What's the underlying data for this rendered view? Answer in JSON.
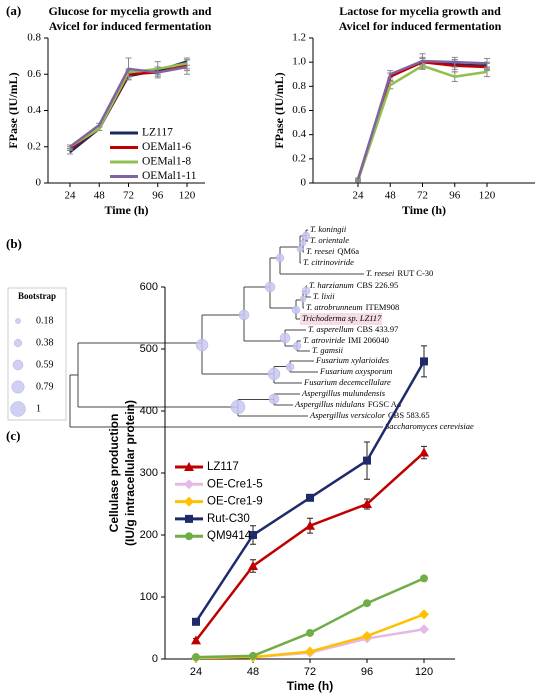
{
  "panels": [
    "(a)",
    "(b)",
    "(c)"
  ],
  "chart_data": [
    {
      "type": "line",
      "title": [
        "Glucose  for mycelia growth and",
        "Avicel for induced fermentation"
      ],
      "xlabel": "Time (h)",
      "ylabel": "FPase (IU/mL)",
      "categories": [
        "24",
        "48",
        "72",
        "96",
        "120"
      ],
      "ylim": [
        0,
        0.8
      ],
      "yticks": [
        0,
        0.2,
        0.4,
        0.6,
        0.8
      ],
      "series": [
        {
          "name": "LZ117",
          "color": "#1b2a5c",
          "values": [
            0.17,
            0.3,
            0.59,
            0.62,
            0.67
          ],
          "errors": [
            0.01,
            0.01,
            0.02,
            0.02,
            0.02
          ]
        },
        {
          "name": "OEMal1-6",
          "color": "#c00000",
          "values": [
            0.19,
            0.3,
            0.6,
            0.61,
            0.65
          ],
          "errors": [
            0.01,
            0.01,
            0.02,
            0.02,
            0.03
          ]
        },
        {
          "name": "OEMal1-8",
          "color": "#92c050",
          "values": [
            0.2,
            0.3,
            0.61,
            0.63,
            0.66
          ],
          "errors": [
            0.01,
            0.01,
            0.02,
            0.04,
            0.03
          ]
        },
        {
          "name": "OEMal1-11",
          "color": "#8064a2",
          "values": [
            0.2,
            0.32,
            0.63,
            0.61,
            0.64
          ],
          "errors": [
            0.01,
            0.01,
            0.06,
            0.03,
            0.04
          ]
        }
      ]
    },
    {
      "type": "line",
      "title": [
        "Lactose for mycelia growth and",
        "Avicel for induced fermentation"
      ],
      "xlabel": "Time (h)",
      "ylabel": "FPase (IU/mL)",
      "categories": [
        "24",
        "48",
        "72",
        "96",
        "120"
      ],
      "ylim": [
        0,
        1.2
      ],
      "yticks": [
        0,
        0.2,
        0.4,
        0.6,
        0.8,
        {
          "value": 1,
          "label": "1.0"
        },
        1.2
      ],
      "series": [
        {
          "name": "LZ117",
          "color": "#1b2a5c",
          "values": [
            0.03,
            0.88,
            1.01,
            0.98,
            0.97
          ],
          "errors": [
            0.01,
            0.03,
            0.03,
            0.04,
            0.03
          ]
        },
        {
          "name": "OEMal1-6",
          "color": "#c00000",
          "values": [
            0.03,
            0.88,
            1.0,
            0.97,
            0.96
          ],
          "errors": [
            0.01,
            0.03,
            0.03,
            0.05,
            0.03
          ]
        },
        {
          "name": "OEMal1-8",
          "color": "#92c050",
          "values": [
            0.02,
            0.81,
            0.97,
            0.88,
            0.92
          ],
          "errors": [
            0.01,
            0.03,
            0.03,
            0.04,
            0.04
          ]
        },
        {
          "name": "OEMal1-11",
          "color": "#8064a2",
          "values": [
            0.03,
            0.9,
            1.01,
            1.0,
            0.99
          ],
          "errors": [
            0.01,
            0.03,
            0.06,
            0.04,
            0.04
          ]
        }
      ]
    },
    {
      "type": "line",
      "xlabel": "Time (h)",
      "ylabel": [
        "Cellulase production",
        "(IU/g intracellular protein)"
      ],
      "categories": [
        "24",
        "48",
        "72",
        "96",
        "120"
      ],
      "ylim": [
        0,
        600
      ],
      "yticks": [
        0,
        100,
        200,
        300,
        400,
        500,
        600
      ],
      "series": [
        {
          "name": "LZ117",
          "color": "#c00000",
          "marker": "triangle",
          "values": [
            30,
            150,
            215,
            250,
            333
          ],
          "errors": [
            3,
            10,
            12,
            8,
            10
          ]
        },
        {
          "name": "OE-Cre1-5",
          "color": "#e6b8e6",
          "marker": "diamond",
          "values": [
            2,
            3,
            10,
            33,
            48
          ]
        },
        {
          "name": "OE-Cre1-9",
          "color": "#ffc000",
          "marker": "diamond",
          "values": [
            2,
            3,
            12,
            37,
            72
          ]
        },
        {
          "name": "Rut-C30",
          "color": "#1f2a6a",
          "marker": "square",
          "values": [
            60,
            200,
            260,
            320,
            480
          ],
          "errors": [
            5,
            15,
            5,
            30,
            25
          ]
        },
        {
          "name": "QM9414",
          "color": "#70ad47",
          "marker": "circle",
          "values": [
            3,
            5,
            42,
            90,
            130
          ]
        }
      ]
    }
  ],
  "tree": {
    "leaves": [
      {
        "name": "T. koningii"
      },
      {
        "name": "T. orientale"
      },
      {
        "name": "T. reesei",
        "strain": "QM6a"
      },
      {
        "name": "T. citrinoviride"
      },
      {
        "name": "T. reesei",
        "strain": "RUT C-30"
      },
      {
        "name": "T. harzianum",
        "strain": "CBS 226.95"
      },
      {
        "name": "T. lixii"
      },
      {
        "name": "T. atrobrunneum",
        "strain": "ITEM908"
      },
      {
        "name": "Trichoderma sp. LZ117"
      },
      {
        "name": "T. asperellum",
        "strain": "CBS 433.97"
      },
      {
        "name": "T. atroviride",
        "strain": "IMI 206040"
      },
      {
        "name": "T. gamsii"
      },
      {
        "name": "Fusarium xylarioides"
      },
      {
        "name": "Fusarium oxysporum"
      },
      {
        "name": "Fusarium decemcellulare"
      },
      {
        "name": "Aspergillus mulundensis"
      },
      {
        "name": "Aspergillus nidulans",
        "strain": "FGSC A4"
      },
      {
        "name": "Aspergillus versicolor",
        "strain": "CBS 583.65"
      },
      {
        "name": "Saccharomyces cerevisiae"
      }
    ],
    "bootstrap_legend": {
      "title": "Bootstrap",
      "values": [
        0.18,
        0.38,
        0.59,
        0.79,
        1
      ]
    }
  }
}
